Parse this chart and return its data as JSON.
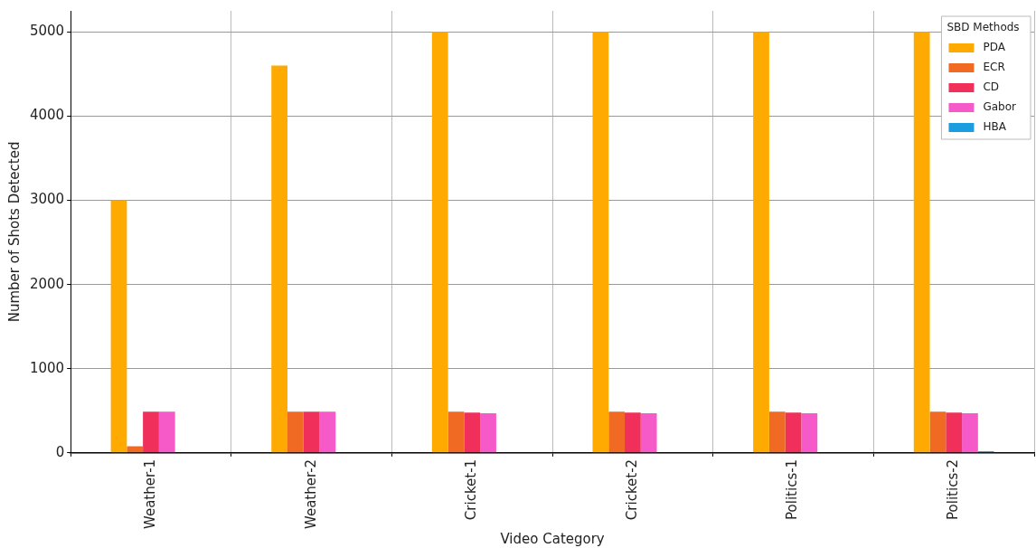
{
  "chart_data": {
    "type": "bar",
    "xlabel": "Video Category",
    "ylabel": "Number of Shots Detected",
    "legend_title": "SBD Methods",
    "categories": [
      "Weather-1",
      "Weather-2",
      "Cricket-1",
      "Cricket-2",
      "Politics-1",
      "Politics-2"
    ],
    "series": [
      {
        "name": "PDA",
        "color": "#ffaa00",
        "values": [
          3000,
          4600,
          5000,
          5000,
          5000,
          5000
        ]
      },
      {
        "name": "ECR",
        "color": "#f06a24",
        "values": [
          80,
          490,
          490,
          490,
          490,
          490
        ]
      },
      {
        "name": "CD",
        "color": "#f0305a",
        "values": [
          490,
          490,
          480,
          480,
          480,
          480
        ]
      },
      {
        "name": "Gabor",
        "color": "#f55ac8",
        "values": [
          490,
          490,
          470,
          470,
          470,
          470
        ]
      },
      {
        "name": "HBA",
        "color": "#1a9ee0",
        "values": [
          0,
          0,
          0,
          0,
          0,
          20
        ]
      }
    ],
    "ylim": [
      0,
      5250
    ],
    "yticks": [
      0,
      1000,
      2000,
      3000,
      4000,
      5000
    ],
    "grid": true,
    "legend": "top right"
  }
}
